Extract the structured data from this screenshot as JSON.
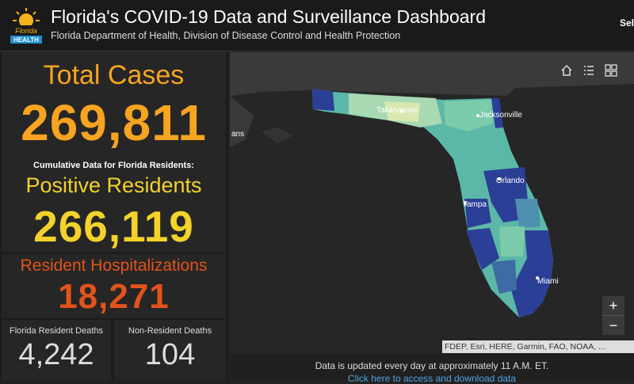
{
  "header": {
    "logo_text_top": "Florida",
    "logo_text_bottom": "HEALTH",
    "title": "Florida's COVID-19 Data and Surveillance Dashboard",
    "subtitle": "Florida Department of Health, Division of Disease Control and Health Protection",
    "select_label": "Sel"
  },
  "stats": {
    "total_cases_label": "Total Cases",
    "total_cases_value": "269,811",
    "cumulative_note": "Cumulative Data for Florida Residents:",
    "positive_residents_label": "Positive Residents",
    "positive_residents_value": "266,119",
    "hospitalizations_label": "Resident Hospitalizations",
    "hospitalizations_value": "18,271",
    "resident_deaths_label": "Florida Resident Deaths",
    "resident_deaths_value": "4,242",
    "nonresident_deaths_label": "Non-Resident Deaths",
    "nonresident_deaths_value": "104"
  },
  "map": {
    "cities": [
      "Tallahassee",
      "Jacksonville",
      "Orlando",
      "Tampa",
      "Miami"
    ],
    "offmap_label": "ans",
    "tools": [
      "home-icon",
      "legend-icon",
      "basemap-icon"
    ],
    "zoom_in": "+",
    "zoom_out": "−",
    "attribution": "FDEP, Esri, HERE, Garmin, FAO, NOAA, ..."
  },
  "footer": {
    "update_note": "Data is updated every day at approximately 11 A.M. ET.",
    "download_link": "Click here to access and download data"
  },
  "colors": {
    "total_cases": "#f7a421",
    "positive_residents": "#f3d22b",
    "hospitalizations": "#e2531b",
    "map_low": "#d8e8b0",
    "map_mid": "#5bb8a8",
    "map_high": "#2c3f96"
  }
}
